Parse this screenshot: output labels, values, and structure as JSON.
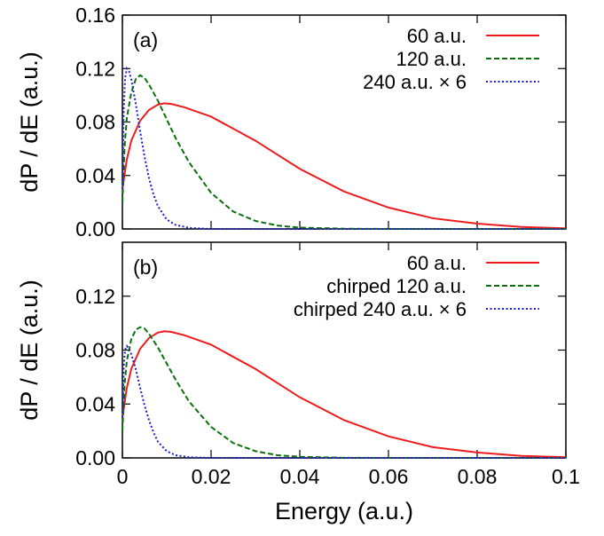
{
  "figure": {
    "xlabel": "Energy (a.u.)",
    "ylabel": "dP / dE (a.u.)",
    "xticks": [
      "0",
      "0.02",
      "0.04",
      "0.06",
      "0.08",
      "0.1"
    ]
  },
  "chart_data": [
    {
      "type": "line",
      "panel_label": "(a)",
      "xlabel": "Energy (a.u.)",
      "ylabel": "dP / dE (a.u.)",
      "xlim": [
        0,
        0.1
      ],
      "ylim": [
        0,
        0.16
      ],
      "x_ticks": [
        "0",
        "0.02",
        "0.04",
        "0.06",
        "0.08",
        "0.1"
      ],
      "y_ticks": [
        "0.00",
        "0.04",
        "0.08",
        "0.12",
        "0.16"
      ],
      "legend_position": "top-right",
      "grid": false,
      "series": [
        {
          "name": "60 a.u.",
          "color": "#ee1c1c",
          "dash": "solid",
          "x": [
            0,
            0.001,
            0.002,
            0.004,
            0.006,
            0.008,
            0.0095,
            0.011,
            0.014,
            0.02,
            0.03,
            0.04,
            0.05,
            0.06,
            0.07,
            0.08,
            0.09,
            0.1
          ],
          "y": [
            0.03,
            0.052,
            0.066,
            0.081,
            0.089,
            0.093,
            0.094,
            0.0935,
            0.091,
            0.084,
            0.066,
            0.045,
            0.028,
            0.016,
            0.008,
            0.004,
            0.0015,
            0.0005
          ]
        },
        {
          "name": "120 a.u.",
          "color": "#0e6e0e",
          "dash": "dashed",
          "x": [
            0,
            0.0005,
            0.001,
            0.002,
            0.003,
            0.004,
            0.005,
            0.006,
            0.008,
            0.01,
            0.012,
            0.015,
            0.02,
            0.025,
            0.03,
            0.035,
            0.04,
            0.05,
            0.06,
            0.1
          ],
          "y": [
            0.02,
            0.062,
            0.083,
            0.102,
            0.112,
            0.115,
            0.113,
            0.108,
            0.096,
            0.082,
            0.068,
            0.05,
            0.027,
            0.013,
            0.006,
            0.0025,
            0.001,
            0.0002,
            0,
            0
          ]
        },
        {
          "name": "240 a.u. × 6",
          "color": "#1a1adc",
          "dash": "dotted",
          "x": [
            0,
            0.0003,
            0.0006,
            0.001,
            0.0015,
            0.002,
            0.003,
            0.004,
            0.005,
            0.006,
            0.007,
            0.008,
            0.01,
            0.012,
            0.015,
            0.02,
            0.03,
            0.1
          ],
          "y": [
            0.03,
            0.09,
            0.113,
            0.12,
            0.118,
            0.112,
            0.094,
            0.073,
            0.054,
            0.038,
            0.026,
            0.017,
            0.007,
            0.003,
            0.0008,
            0,
            0,
            0
          ]
        }
      ]
    },
    {
      "type": "line",
      "panel_label": "(b)",
      "xlabel": "Energy (a.u.)",
      "ylabel": "dP / dE (a.u.)",
      "xlim": [
        0,
        0.1
      ],
      "ylim": [
        0,
        0.16
      ],
      "x_ticks": [
        "0",
        "0.02",
        "0.04",
        "0.06",
        "0.08",
        "0.1"
      ],
      "y_ticks": [
        "0.00",
        "0.04",
        "0.08",
        "0.12"
      ],
      "legend_position": "top-right",
      "grid": false,
      "series": [
        {
          "name": "60 a.u.",
          "color": "#ee1c1c",
          "dash": "solid",
          "x": [
            0,
            0.001,
            0.002,
            0.004,
            0.006,
            0.008,
            0.0095,
            0.011,
            0.014,
            0.02,
            0.03,
            0.04,
            0.05,
            0.06,
            0.07,
            0.08,
            0.09,
            0.1
          ],
          "y": [
            0.03,
            0.052,
            0.066,
            0.081,
            0.089,
            0.093,
            0.094,
            0.0935,
            0.091,
            0.084,
            0.066,
            0.045,
            0.028,
            0.016,
            0.008,
            0.004,
            0.0015,
            0.0005
          ]
        },
        {
          "name": "chirped 120 a.u.",
          "color": "#0e6e0e",
          "dash": "dashed",
          "x": [
            0,
            0.0005,
            0.001,
            0.002,
            0.003,
            0.004,
            0.005,
            0.006,
            0.008,
            0.01,
            0.012,
            0.015,
            0.02,
            0.025,
            0.03,
            0.035,
            0.04,
            0.05,
            0.06,
            0.1
          ],
          "y": [
            0.02,
            0.055,
            0.072,
            0.088,
            0.095,
            0.097,
            0.096,
            0.092,
            0.082,
            0.07,
            0.058,
            0.042,
            0.023,
            0.011,
            0.005,
            0.002,
            0.0008,
            0.0001,
            0,
            0
          ]
        },
        {
          "name": "chirped 240 a.u. × 6",
          "color": "#1a1adc",
          "dash": "dotted",
          "x": [
            0,
            0.0003,
            0.0006,
            0.001,
            0.0015,
            0.002,
            0.003,
            0.004,
            0.005,
            0.006,
            0.007,
            0.008,
            0.01,
            0.012,
            0.015,
            0.02,
            0.03,
            0.1
          ],
          "y": [
            0.03,
            0.068,
            0.08,
            0.083,
            0.081,
            0.077,
            0.066,
            0.052,
            0.039,
            0.028,
            0.019,
            0.012,
            0.005,
            0.002,
            0.0005,
            0,
            0,
            0
          ]
        }
      ]
    }
  ]
}
